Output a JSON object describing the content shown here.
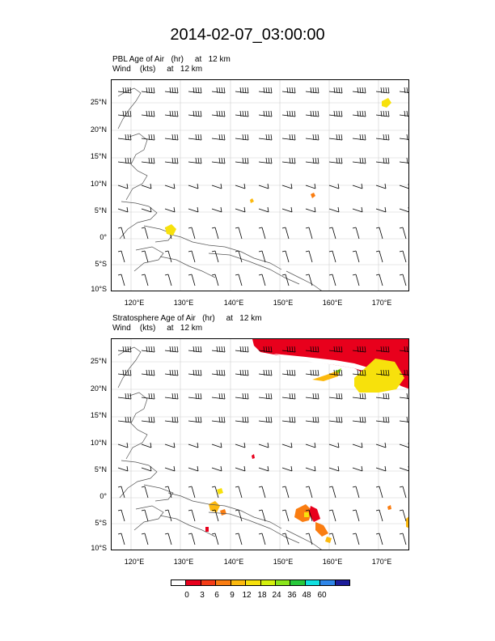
{
  "title": "2014-02-07_03:00:00",
  "panels": [
    {
      "line1": "PBL Age of Air   (hr)     at   12 km",
      "line2": "Wind    (kts)     at   12 km"
    },
    {
      "line1": "Stratosphere Age of Air   (hr)     at   12 km",
      "line2": "Wind    (kts)     at   12 km"
    }
  ],
  "lat_labels": [
    "25°N",
    "20°N",
    "15°N",
    "10°N",
    "5°N",
    "0°",
    "5°S",
    "10°S"
  ],
  "lon_labels": [
    "120°E",
    "130°E",
    "140°E",
    "150°E",
    "160°E",
    "170°E"
  ],
  "colorbar": {
    "labels": [
      "0",
      "3",
      "6",
      "9",
      "12",
      "18",
      "24",
      "36",
      "48",
      "60"
    ],
    "colors": [
      "#ffffff",
      "#e8001c",
      "#f53c16",
      "#fa7d11",
      "#fcb90e",
      "#f7e10c",
      "#d4f00c",
      "#8ae51a",
      "#27c83a",
      "#10e0e0",
      "#2e86e8",
      "#1c1c9a"
    ]
  }
}
